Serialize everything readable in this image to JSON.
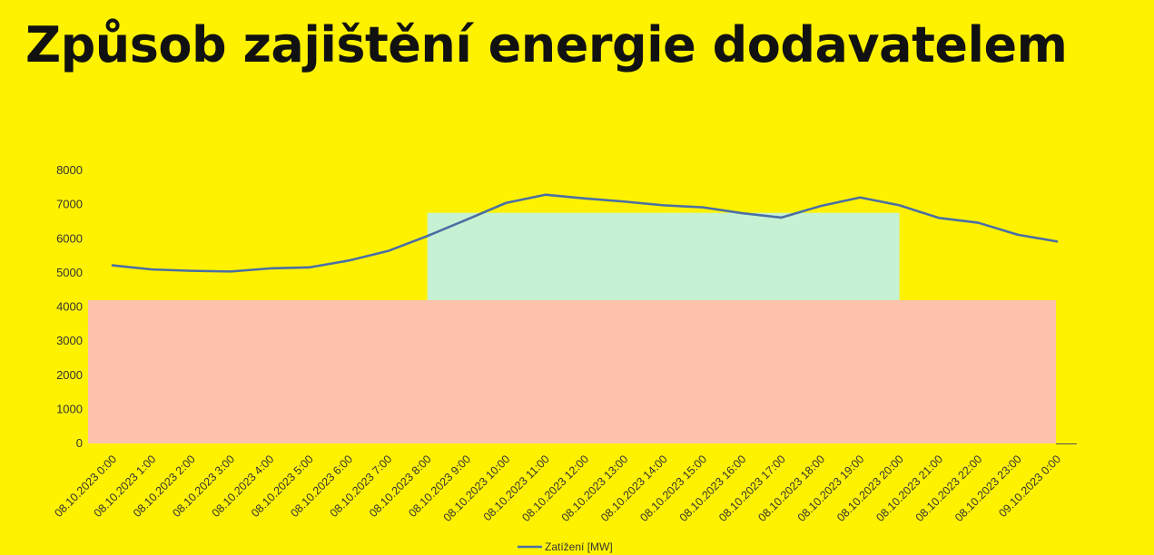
{
  "title": "Způsob zajištění energie dodavatelem",
  "colors": {
    "background": "#FFF200",
    "line": "#4A6FA5",
    "band_green": "#C6F1D2",
    "band_red": "#FCC2AB",
    "title": "#111111"
  },
  "chart_data": {
    "type": "line",
    "title": "",
    "xlabel": "",
    "ylabel": "",
    "ylim": [
      0,
      8000
    ],
    "yticks": [
      0,
      1000,
      2000,
      3000,
      4000,
      5000,
      6000,
      7000,
      8000
    ],
    "grid": false,
    "legend_position": "bottom",
    "categories": [
      "08.10.2023 0:00",
      "08.10.2023 1:00",
      "08.10.2023 2:00",
      "08.10.2023 3:00",
      "08.10.2023 4:00",
      "08.10.2023 5:00",
      "08.10.2023 6:00",
      "08.10.2023 7:00",
      "08.10.2023 8:00",
      "08.10.2023 9:00",
      "08.10.2023 10:00",
      "08.10.2023 11:00",
      "08.10.2023 12:00",
      "08.10.2023 13:00",
      "08.10.2023 14:00",
      "08.10.2023 15:00",
      "08.10.2023 16:00",
      "08.10.2023 17:00",
      "08.10.2023 18:00",
      "08.10.2023 19:00",
      "08.10.2023 20:00",
      "08.10.2023 21:00",
      "08.10.2023 22:00",
      "08.10.2023 23:00",
      "09.10.2023 0:00"
    ],
    "series": [
      {
        "name": "Zatížení [MW]",
        "color": "#4A6FA5",
        "values": [
          5220,
          5100,
          5060,
          5040,
          5130,
          5160,
          5360,
          5640,
          6080,
          6560,
          7050,
          7290,
          7180,
          7090,
          6980,
          6920,
          6750,
          6620,
          6960,
          7210,
          6980,
          6610,
          6470,
          6120,
          5920
        ]
      }
    ],
    "bands": [
      {
        "from_category": 8,
        "to_category": 20,
        "y_from": 4200,
        "y_to": 6760,
        "color": "#C6F1D2"
      },
      {
        "from_category": 0,
        "to_category": 24,
        "y_from": 0,
        "y_to": 4200,
        "color": "#FCC2AB"
      }
    ]
  }
}
